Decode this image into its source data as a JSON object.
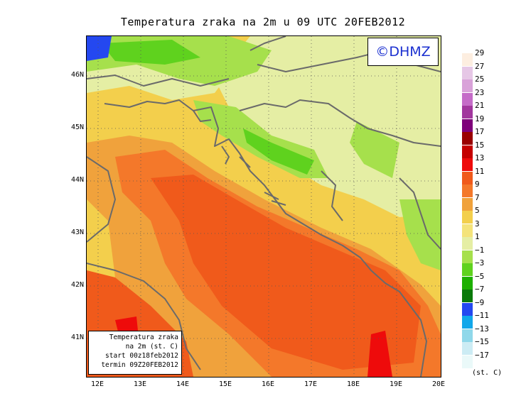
{
  "title": "Temperatura zraka na 2m u 09 UTC 20FEB2012",
  "credit": "©DHMZ",
  "info_box": {
    "line1": "Temperatura zraka",
    "line2": "na 2m (st. C)",
    "line3": "start 00z18feb2012",
    "line4": "termin 09Z20FEB2012"
  },
  "lat_labels": [
    "46N",
    "45N",
    "44N",
    "43N",
    "42N",
    "41N"
  ],
  "lon_labels": [
    "12E",
    "13E",
    "14E",
    "15E",
    "16E",
    "17E",
    "18E",
    "19E",
    "20E"
  ],
  "legend_levels": [
    {
      "label": "29",
      "color": "#fdeee0"
    },
    {
      "label": "27",
      "color": "#e6c7e6"
    },
    {
      "label": "25",
      "color": "#d9a2d9"
    },
    {
      "label": "23",
      "color": "#c56cc8"
    },
    {
      "label": "21",
      "color": "#a2379e"
    },
    {
      "label": "19",
      "color": "#7e007a"
    },
    {
      "label": "17",
      "color": "#9a0000"
    },
    {
      "label": "15",
      "color": "#c50000"
    },
    {
      "label": "13",
      "color": "#ee0b0b"
    },
    {
      "label": "11",
      "color": "#f05a1b"
    },
    {
      "label": "9",
      "color": "#f4782a"
    },
    {
      "label": "7",
      "color": "#f0a23c"
    },
    {
      "label": "5",
      "color": "#f3cf4c"
    },
    {
      "label": "3",
      "color": "#f4e37a"
    },
    {
      "label": "1",
      "color": "#e5eea4"
    },
    {
      "label": "−1",
      "color": "#a6e04c"
    },
    {
      "label": "−3",
      "color": "#5fd21e"
    },
    {
      "label": "−5",
      "color": "#1db000"
    },
    {
      "label": "−7",
      "color": "#0a7a0a"
    },
    {
      "label": "−9",
      "color": "#2448f0"
    },
    {
      "label": "−11",
      "color": "#11a7ea"
    },
    {
      "label": "−13",
      "color": "#8fd8ea"
    },
    {
      "label": "−15",
      "color": "#ccecf4"
    },
    {
      "label": "−17",
      "color": "#eaf9f9"
    }
  ],
  "units": "(st. C)",
  "colors": {
    "border": "#6a6a6a",
    "grid": "#555555",
    "credit_text": "#1a2fd0"
  }
}
